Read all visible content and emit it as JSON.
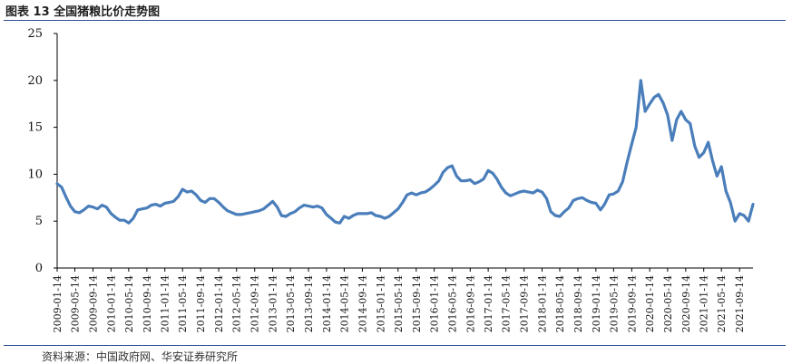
{
  "header": {
    "title": "图表 13  全国猪粮比价走势图"
  },
  "footer": {
    "source": "资料来源：中国政府网、华安证券研究所"
  },
  "chart_data": {
    "type": "line",
    "title": "",
    "xlabel": "",
    "ylabel": "",
    "ylim": [
      0,
      25
    ],
    "yticks": [
      0,
      5,
      10,
      15,
      20,
      25
    ],
    "grid": false,
    "legend": "none",
    "x_start": "2009-01-14",
    "x_end": "2021-12-14",
    "x_tick_labels": [
      "2009-01-14",
      "2009-05-14",
      "2009-09-14",
      "2010-01-14",
      "2010-05-14",
      "2010-09-14",
      "2011-01-14",
      "2011-05-14",
      "2011-09-14",
      "2012-01-14",
      "2012-05-14",
      "2012-09-14",
      "2013-01-14",
      "2013-05-14",
      "2013-09-14",
      "2014-01-14",
      "2014-05-14",
      "2014-09-14",
      "2015-01-14",
      "2015-05-14",
      "2015-09-14",
      "2016-01-14",
      "2016-05-14",
      "2016-09-14",
      "2017-01-14",
      "2017-05-14",
      "2017-09-14",
      "2018-01-14",
      "2018-05-14",
      "2018-09-14",
      "2019-01-14",
      "2019-05-14",
      "2019-09-14",
      "2020-01-14",
      "2020-05-14",
      "2020-09-14",
      "2021-01-14",
      "2021-05-14",
      "2021-09-14"
    ],
    "series": [
      {
        "color": "#4a7ebb",
        "points": [
          [
            "2009-01-14",
            9.0
          ],
          [
            "2009-02-14",
            8.6
          ],
          [
            "2009-03-14",
            7.6
          ],
          [
            "2009-04-14",
            6.6
          ],
          [
            "2009-05-14",
            6.0
          ],
          [
            "2009-06-14",
            5.9
          ],
          [
            "2009-07-14",
            6.2
          ],
          [
            "2009-08-14",
            6.6
          ],
          [
            "2009-09-14",
            6.5
          ],
          [
            "2009-10-14",
            6.3
          ],
          [
            "2009-11-14",
            6.7
          ],
          [
            "2009-12-14",
            6.5
          ],
          [
            "2010-01-14",
            5.8
          ],
          [
            "2010-02-14",
            5.4
          ],
          [
            "2010-03-14",
            5.1
          ],
          [
            "2010-04-14",
            5.1
          ],
          [
            "2010-05-14",
            4.8
          ],
          [
            "2010-06-14",
            5.3
          ],
          [
            "2010-07-14",
            6.2
          ],
          [
            "2010-08-14",
            6.3
          ],
          [
            "2010-09-14",
            6.4
          ],
          [
            "2010-10-14",
            6.7
          ],
          [
            "2010-11-14",
            6.8
          ],
          [
            "2010-12-14",
            6.6
          ],
          [
            "2011-01-14",
            6.9
          ],
          [
            "2011-02-14",
            7.0
          ],
          [
            "2011-03-14",
            7.1
          ],
          [
            "2011-04-14",
            7.6
          ],
          [
            "2011-05-14",
            8.4
          ],
          [
            "2011-06-14",
            8.1
          ],
          [
            "2011-07-14",
            8.2
          ],
          [
            "2011-08-14",
            7.8
          ],
          [
            "2011-09-14",
            7.2
          ],
          [
            "2011-10-14",
            7.0
          ],
          [
            "2011-11-14",
            7.4
          ],
          [
            "2011-12-14",
            7.4
          ],
          [
            "2012-01-14",
            7.0
          ],
          [
            "2012-02-14",
            6.5
          ],
          [
            "2012-03-14",
            6.1
          ],
          [
            "2012-04-14",
            5.9
          ],
          [
            "2012-05-14",
            5.7
          ],
          [
            "2012-06-14",
            5.7
          ],
          [
            "2012-07-14",
            5.8
          ],
          [
            "2012-08-14",
            5.9
          ],
          [
            "2012-09-14",
            6.0
          ],
          [
            "2012-10-14",
            6.1
          ],
          [
            "2012-11-14",
            6.3
          ],
          [
            "2012-12-14",
            6.7
          ],
          [
            "2013-01-14",
            7.1
          ],
          [
            "2013-02-14",
            6.5
          ],
          [
            "2013-03-14",
            5.6
          ],
          [
            "2013-04-14",
            5.5
          ],
          [
            "2013-05-14",
            5.8
          ],
          [
            "2013-06-14",
            6.0
          ],
          [
            "2013-07-14",
            6.4
          ],
          [
            "2013-08-14",
            6.7
          ],
          [
            "2013-09-14",
            6.6
          ],
          [
            "2013-10-14",
            6.5
          ],
          [
            "2013-11-14",
            6.6
          ],
          [
            "2013-12-14",
            6.4
          ],
          [
            "2014-01-14",
            5.7
          ],
          [
            "2014-02-14",
            5.3
          ],
          [
            "2014-03-14",
            4.9
          ],
          [
            "2014-04-14",
            4.8
          ],
          [
            "2014-05-14",
            5.5
          ],
          [
            "2014-06-14",
            5.3
          ],
          [
            "2014-07-14",
            5.6
          ],
          [
            "2014-08-14",
            5.8
          ],
          [
            "2014-09-14",
            5.8
          ],
          [
            "2014-10-14",
            5.8
          ],
          [
            "2014-11-14",
            5.9
          ],
          [
            "2014-12-14",
            5.6
          ],
          [
            "2015-01-14",
            5.5
          ],
          [
            "2015-02-14",
            5.3
          ],
          [
            "2015-03-14",
            5.5
          ],
          [
            "2015-04-14",
            5.9
          ],
          [
            "2015-05-14",
            6.3
          ],
          [
            "2015-06-14",
            7.0
          ],
          [
            "2015-07-14",
            7.8
          ],
          [
            "2015-08-14",
            8.0
          ],
          [
            "2015-09-14",
            7.8
          ],
          [
            "2015-10-14",
            8.0
          ],
          [
            "2015-11-14",
            8.1
          ],
          [
            "2015-12-14",
            8.4
          ],
          [
            "2016-01-14",
            8.8
          ],
          [
            "2016-02-14",
            9.3
          ],
          [
            "2016-03-14",
            10.2
          ],
          [
            "2016-04-14",
            10.7
          ],
          [
            "2016-05-14",
            10.9
          ],
          [
            "2016-06-14",
            9.8
          ],
          [
            "2016-07-14",
            9.3
          ],
          [
            "2016-08-14",
            9.3
          ],
          [
            "2016-09-14",
            9.4
          ],
          [
            "2016-10-14",
            9.0
          ],
          [
            "2016-11-14",
            9.2
          ],
          [
            "2016-12-14",
            9.5
          ],
          [
            "2017-01-14",
            10.4
          ],
          [
            "2017-02-14",
            10.1
          ],
          [
            "2017-03-14",
            9.5
          ],
          [
            "2017-04-14",
            8.6
          ],
          [
            "2017-05-14",
            8.0
          ],
          [
            "2017-06-14",
            7.7
          ],
          [
            "2017-07-14",
            7.9
          ],
          [
            "2017-08-14",
            8.1
          ],
          [
            "2017-09-14",
            8.2
          ],
          [
            "2017-10-14",
            8.1
          ],
          [
            "2017-11-14",
            8.0
          ],
          [
            "2017-12-14",
            8.3
          ],
          [
            "2018-01-14",
            8.1
          ],
          [
            "2018-02-14",
            7.4
          ],
          [
            "2018-03-14",
            6.0
          ],
          [
            "2018-04-14",
            5.6
          ],
          [
            "2018-05-14",
            5.5
          ],
          [
            "2018-06-14",
            6.0
          ],
          [
            "2018-07-14",
            6.4
          ],
          [
            "2018-08-14",
            7.2
          ],
          [
            "2018-09-14",
            7.4
          ],
          [
            "2018-10-14",
            7.5
          ],
          [
            "2018-11-14",
            7.2
          ],
          [
            "2018-12-14",
            7.0
          ],
          [
            "2019-01-14",
            6.9
          ],
          [
            "2019-02-14",
            6.2
          ],
          [
            "2019-03-14",
            6.8
          ],
          [
            "2019-04-14",
            7.8
          ],
          [
            "2019-05-14",
            7.9
          ],
          [
            "2019-06-14",
            8.2
          ],
          [
            "2019-07-14",
            9.2
          ],
          [
            "2019-08-14",
            11.3
          ],
          [
            "2019-09-14",
            13.2
          ],
          [
            "2019-10-14",
            15.0
          ],
          [
            "2019-11-14",
            20.0
          ],
          [
            "2019-12-14",
            16.7
          ],
          [
            "2020-01-14",
            17.5
          ],
          [
            "2020-02-14",
            18.2
          ],
          [
            "2020-03-14",
            18.5
          ],
          [
            "2020-04-14",
            17.6
          ],
          [
            "2020-05-14",
            16.3
          ],
          [
            "2020-06-14",
            13.6
          ],
          [
            "2020-07-14",
            15.8
          ],
          [
            "2020-08-14",
            16.7
          ],
          [
            "2020-09-14",
            15.8
          ],
          [
            "2020-10-14",
            15.4
          ],
          [
            "2020-11-14",
            13.0
          ],
          [
            "2020-12-14",
            11.8
          ],
          [
            "2021-01-14",
            12.3
          ],
          [
            "2021-02-14",
            13.4
          ],
          [
            "2021-03-14",
            11.5
          ],
          [
            "2021-04-14",
            9.8
          ],
          [
            "2021-05-14",
            10.8
          ],
          [
            "2021-06-14",
            8.2
          ],
          [
            "2021-07-14",
            7.0
          ],
          [
            "2021-08-14",
            5.0
          ],
          [
            "2021-09-14",
            5.8
          ],
          [
            "2021-10-14",
            5.6
          ],
          [
            "2021-11-14",
            5.0
          ],
          [
            "2021-12-14",
            6.8
          ]
        ]
      }
    ]
  }
}
